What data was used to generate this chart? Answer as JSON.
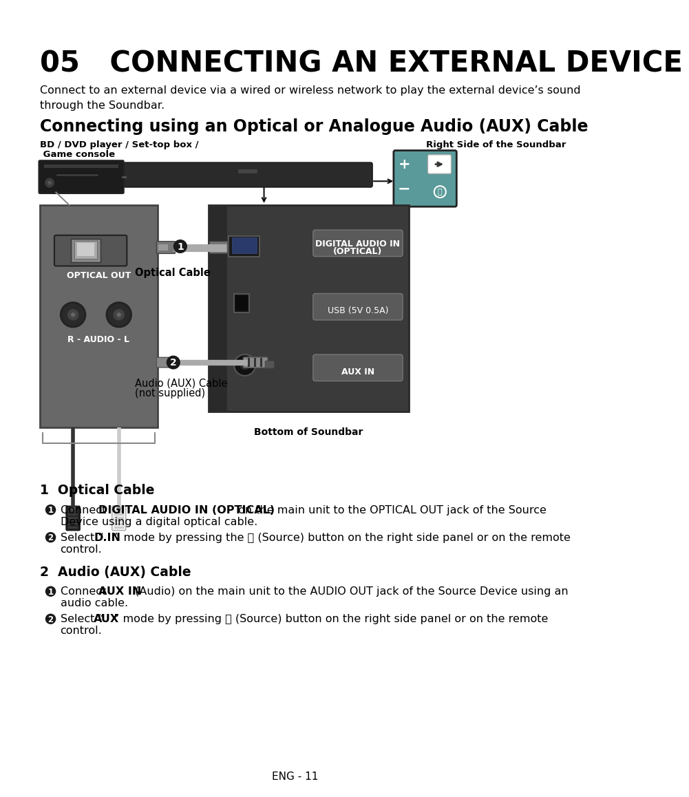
{
  "title": "05   CONNECTING AN EXTERNAL DEVICE",
  "subtitle": "Connect to an external device via a wired or wireless network to play the external device’s sound\nthrough the Soundbar.",
  "section_title": "Connecting using an Optical or Analogue Audio (AUX) Cable",
  "label_source_line1": "BD / DVD player / Set-top box /",
  "label_source_line2": " Game console",
  "label_right_side": "Right Side of the Soundbar",
  "label_optical_out": "OPTICAL OUT",
  "label_optical_cable": "Optical Cable",
  "label_audio_aux_cable_line1": "Audio (AUX) Cable",
  "label_audio_aux_cable_line2": "(not supplied)",
  "label_bottom_soundbar": "Bottom of Soundbar",
  "label_r_audio_l": "R - AUDIO - L",
  "port_labels": [
    "DIGITAL AUDIO IN\n(OPTICAL)",
    "USB (5V 0.5A)",
    "AUX IN"
  ],
  "footer": "ENG - 11",
  "bg_color": "#ffffff",
  "text_color": "#000000",
  "panel_dark": "#3a3a3a",
  "panel_medium": "#525252",
  "panel_light": "#7a7a7a",
  "panel_source": "#686868",
  "teal_color": "#5a9a9a",
  "white": "#ffffff",
  "cable_gray": "#a0a0a0",
  "port_btn_color": "#5a5a5a"
}
